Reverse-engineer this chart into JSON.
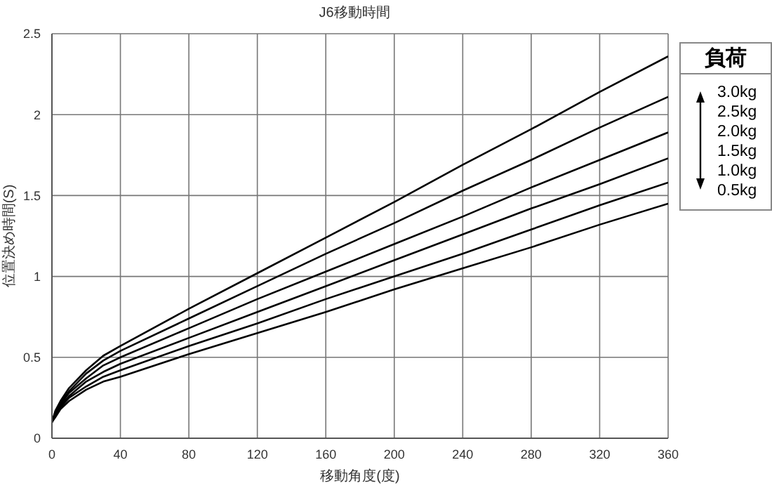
{
  "chart_data": {
    "type": "line",
    "title": "J6移動時間",
    "xlabel": "移動角度(度)",
    "ylabel": "位置決め時間(S)",
    "legend_title": "負荷",
    "legend": "right",
    "grid": true,
    "marker": "none",
    "line_style": "solid",
    "x": [
      0,
      2,
      5,
      10,
      20,
      30,
      40,
      80,
      120,
      160,
      200,
      240,
      280,
      320,
      360
    ],
    "xlim": [
      0,
      360
    ],
    "xticks": [
      0,
      40,
      80,
      120,
      160,
      200,
      240,
      280,
      320,
      360
    ],
    "ylim": [
      0,
      2.5
    ],
    "yticks": [
      0,
      0.5,
      1,
      1.5,
      2,
      2.5
    ],
    "series": [
      {
        "name": "3.0kg",
        "color": "#000000",
        "values": [
          0.1,
          0.17,
          0.23,
          0.31,
          0.42,
          0.51,
          0.57,
          0.8,
          1.02,
          1.24,
          1.46,
          1.69,
          1.91,
          2.14,
          2.36
        ]
      },
      {
        "name": "2.5kg",
        "color": "#000000",
        "values": [
          0.1,
          0.16,
          0.22,
          0.29,
          0.4,
          0.48,
          0.54,
          0.74,
          0.94,
          1.14,
          1.33,
          1.53,
          1.72,
          1.92,
          2.11
        ]
      },
      {
        "name": "2.0kg",
        "color": "#000000",
        "values": [
          0.1,
          0.15,
          0.21,
          0.28,
          0.37,
          0.45,
          0.5,
          0.68,
          0.86,
          1.03,
          1.2,
          1.37,
          1.55,
          1.72,
          1.89
        ]
      },
      {
        "name": "1.5kg",
        "color": "#000000",
        "values": [
          0.1,
          0.15,
          0.2,
          0.26,
          0.35,
          0.41,
          0.46,
          0.62,
          0.78,
          0.94,
          1.1,
          1.26,
          1.42,
          1.57,
          1.73
        ]
      },
      {
        "name": "1.0kg",
        "color": "#000000",
        "values": [
          0.1,
          0.14,
          0.19,
          0.25,
          0.32,
          0.38,
          0.42,
          0.57,
          0.71,
          0.86,
          1.0,
          1.14,
          1.29,
          1.44,
          1.58
        ]
      },
      {
        "name": "0.5kg",
        "color": "#000000",
        "values": [
          0.1,
          0.13,
          0.18,
          0.23,
          0.3,
          0.35,
          0.38,
          0.52,
          0.65,
          0.78,
          0.92,
          1.05,
          1.18,
          1.32,
          1.45
        ]
      }
    ]
  }
}
